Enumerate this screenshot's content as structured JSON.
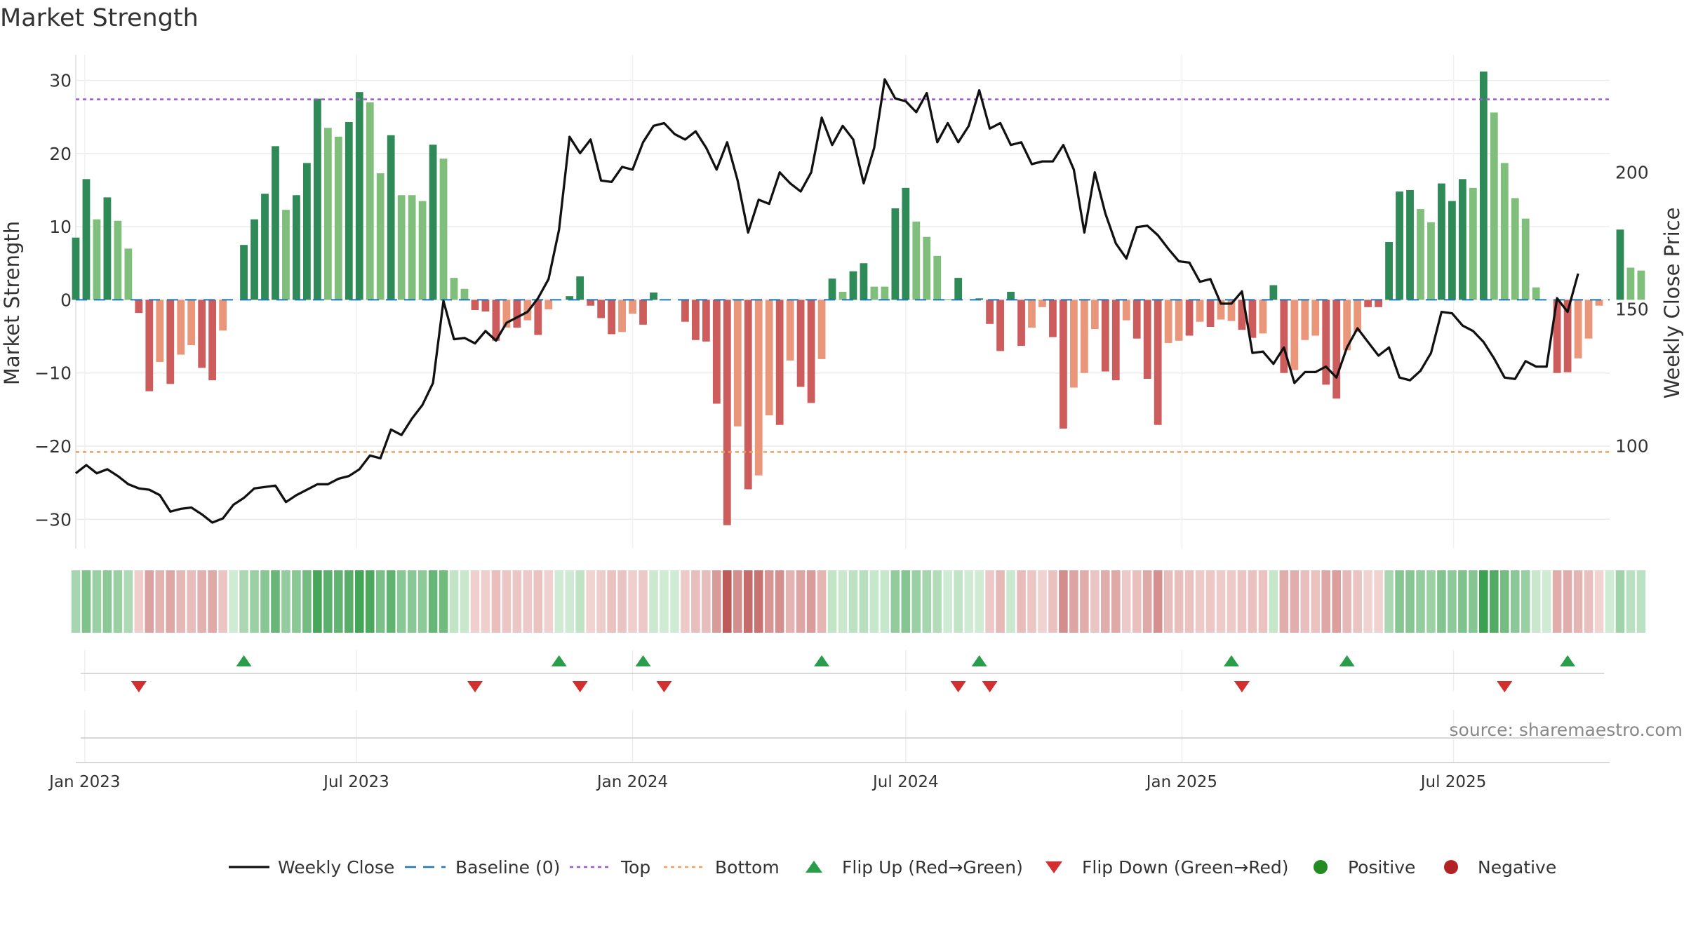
{
  "chart_data": {
    "type": "bar",
    "title": "Market Strength",
    "ylabel_left": "Market Strength",
    "ylabel_right": "Weekly Close Price",
    "ylim_left": [
      -34,
      33.5
    ],
    "ylim_right": [
      62.5,
      243
    ],
    "yticks_left": [
      30,
      20,
      10,
      0,
      -10,
      -20,
      -30
    ],
    "ytick_labels_left": [
      "30",
      "20",
      "10",
      "0",
      "−10",
      "−20",
      "−30"
    ],
    "yticks_right": [
      200,
      150,
      100
    ],
    "ytick_labels_right": [
      "200",
      "150",
      "100"
    ],
    "x_start": "2022-12-26",
    "x_end": "2025-10-13",
    "xticks": [
      "2023-01-01",
      "2023-07-01",
      "2024-01-01",
      "2024-07-01",
      "2025-01-01",
      "2025-07-01"
    ],
    "xtick_labels": [
      "Jan 2023",
      "Jul 2023",
      "Jan 2024",
      "Jul 2024",
      "Jan 2025",
      "Jul 2025"
    ],
    "top_level": 27.4,
    "bottom_level": -20.8,
    "baseline": 0,
    "grid": true,
    "legend_placement": "bottom-center",
    "legend": [
      "Weekly Close",
      "Baseline (0)",
      "Top",
      "Bottom",
      "Flip Up (Red→Green)",
      "Flip Down (Green→Red)",
      "Positive",
      "Negative"
    ],
    "source": "source: sharemaestro.com",
    "strength": [
      8.5,
      16.5,
      11,
      14,
      10.8,
      7,
      -1.8,
      -12.5,
      -8.5,
      -11.5,
      -7.5,
      -6.2,
      -9.3,
      -11,
      -4.2,
      0,
      7.5,
      11,
      14.5,
      21,
      12.3,
      14.3,
      18.7,
      27.5,
      23.5,
      22.3,
      24.3,
      28.4,
      27,
      17.3,
      22.5,
      14.3,
      14.3,
      13.5,
      21.2,
      19.3,
      3,
      1.5,
      -1.4,
      -1.6,
      -5.6,
      -3.8,
      -3.8,
      -2.8,
      -4.8,
      -1.3,
      0,
      0.5,
      3.2,
      -0.8,
      -2.5,
      -4.7,
      -4.4,
      -1.9,
      -3.4,
      1,
      0,
      0,
      -3,
      -5.5,
      -5.7,
      -14.2,
      -30.8,
      -17.3,
      -25.9,
      -24,
      -15.8,
      -17.1,
      -8.3,
      -11.9,
      -14.1,
      -8.1,
      2.9,
      1.1,
      3.9,
      5,
      1.8,
      1.8,
      12.5,
      15.3,
      10.7,
      8.6,
      6,
      0.1,
      3,
      0,
      0.2,
      -3.3,
      -7,
      1.1,
      -6.3,
      -3.8,
      -1,
      -5.1,
      -17.6,
      -12,
      -10,
      -4,
      -9.8,
      -11,
      -2.8,
      -5.3,
      -10.8,
      -17.1,
      -5.9,
      -5.6,
      -4.9,
      -3,
      -3.7,
      -2.7,
      -2.9,
      -4.1,
      -5.2,
      -4.6,
      2,
      -10,
      -9.6,
      -5.5,
      -4.9,
      -11.6,
      -13.5,
      -6.9,
      -4.4,
      -1,
      -1,
      7.9,
      14.8,
      15,
      12.4,
      10.6,
      15.9,
      13.5,
      16.5,
      15.3,
      31.2,
      25.6,
      18.7,
      13.9,
      11.1,
      1.7,
      0,
      -10,
      -9.9,
      -8,
      -5.3,
      -0.8,
      0,
      9.6,
      4.4,
      4
    ],
    "bar_colors": [
      "#2e8b57",
      "#2e8b57",
      "#7fbf7b",
      "#2e8b57",
      "#7fbf7b",
      "#7fbf7b",
      "#cd5c5c",
      "#cd5c5c",
      "#e9967a",
      "#cd5c5c",
      "#e9967a",
      "#e9967a",
      "#cd5c5c",
      "#cd5c5c",
      "#e9967a",
      "#7fbf7b",
      "#2e8b57",
      "#2e8b57",
      "#2e8b57",
      "#2e8b57",
      "#7fbf7b",
      "#2e8b57",
      "#2e8b57",
      "#2e8b57",
      "#7fbf7b",
      "#7fbf7b",
      "#2e8b57",
      "#2e8b57",
      "#7fbf7b",
      "#7fbf7b",
      "#2e8b57",
      "#7fbf7b",
      "#7fbf7b",
      "#7fbf7b",
      "#2e8b57",
      "#7fbf7b",
      "#7fbf7b",
      "#7fbf7b",
      "#cd5c5c",
      "#cd5c5c",
      "#cd5c5c",
      "#e9967a",
      "#cd5c5c",
      "#e9967a",
      "#cd5c5c",
      "#e9967a",
      "#7fbf7b",
      "#2e8b57",
      "#2e8b57",
      "#cd5c5c",
      "#cd5c5c",
      "#cd5c5c",
      "#e9967a",
      "#e9967a",
      "#cd5c5c",
      "#2e8b57",
      "#7fbf7b",
      "#7fbf7b",
      "#cd5c5c",
      "#cd5c5c",
      "#cd5c5c",
      "#cd5c5c",
      "#cd5c5c",
      "#e9967a",
      "#cd5c5c",
      "#e9967a",
      "#e9967a",
      "#cd5c5c",
      "#e9967a",
      "#cd5c5c",
      "#cd5c5c",
      "#e9967a",
      "#2e8b57",
      "#7fbf7b",
      "#2e8b57",
      "#2e8b57",
      "#7fbf7b",
      "#7fbf7b",
      "#2e8b57",
      "#2e8b57",
      "#7fbf7b",
      "#7fbf7b",
      "#7fbf7b",
      "#7fbf7b",
      "#2e8b57",
      "#7fbf7b",
      "#2e8b57",
      "#cd5c5c",
      "#cd5c5c",
      "#2e8b57",
      "#cd5c5c",
      "#e9967a",
      "#e9967a",
      "#cd5c5c",
      "#cd5c5c",
      "#e9967a",
      "#e9967a",
      "#e9967a",
      "#cd5c5c",
      "#cd5c5c",
      "#e9967a",
      "#cd5c5c",
      "#cd5c5c",
      "#cd5c5c",
      "#e9967a",
      "#e9967a",
      "#cd5c5c",
      "#e9967a",
      "#cd5c5c",
      "#e9967a",
      "#e9967a",
      "#cd5c5c",
      "#cd5c5c",
      "#e9967a",
      "#2e8b57",
      "#cd5c5c",
      "#e9967a",
      "#e9967a",
      "#e9967a",
      "#cd5c5c",
      "#cd5c5c",
      "#e9967a",
      "#e9967a",
      "#cd5c5c",
      "#cd5c5c",
      "#2e8b57",
      "#2e8b57",
      "#2e8b57",
      "#7fbf7b",
      "#7fbf7b",
      "#2e8b57",
      "#2e8b57",
      "#2e8b57",
      "#7fbf7b",
      "#2e8b57",
      "#7fbf7b",
      "#7fbf7b",
      "#7fbf7b",
      "#7fbf7b",
      "#7fbf7b",
      "#7fbf7b",
      "#cd5c5c",
      "#cd5c5c",
      "#e9967a",
      "#e9967a",
      "#e9967a",
      "#7fbf7b",
      "#2e8b57",
      "#7fbf7b",
      "#7fbf7b"
    ],
    "price": [
      90,
      93,
      90,
      91.5,
      89,
      86,
      84.5,
      84,
      82,
      76,
      77,
      77.5,
      75,
      72,
      73.5,
      78.5,
      81,
      84.5,
      85,
      85.5,
      79.5,
      82,
      84,
      86,
      86,
      88,
      89,
      91.5,
      96.5,
      95.5,
      106,
      104,
      110,
      115,
      123,
      153,
      139,
      139.5,
      137.5,
      142,
      138.5,
      145,
      147,
      149,
      154,
      161,
      179,
      213,
      207,
      212,
      197,
      196.5,
      202,
      201,
      211,
      217,
      218,
      214,
      212,
      215,
      209,
      201,
      211,
      197,
      178,
      190,
      188.5,
      200,
      196,
      193,
      200,
      220,
      210,
      217,
      212,
      196,
      209,
      234,
      227,
      226,
      222,
      229,
      211,
      218,
      211,
      217,
      230,
      216,
      218,
      210,
      211,
      203,
      204,
      204,
      210,
      201,
      178,
      200,
      185,
      174,
      168.5,
      180,
      180.5,
      177,
      172,
      167.5,
      167,
      160,
      161,
      152,
      152,
      156.5,
      134,
      134.5,
      130,
      136,
      123,
      127,
      127,
      129,
      125,
      136,
      143,
      138,
      133,
      136,
      125,
      124,
      127.5,
      134,
      149,
      148.5,
      144,
      142,
      138,
      132,
      125,
      124.5,
      131,
      129,
      129,
      154,
      149,
      163
    ],
    "flip_up_weeks": [
      16,
      46,
      54,
      71,
      86,
      110,
      121,
      142
    ],
    "flip_down_weeks": [
      6,
      38,
      48,
      56,
      84,
      87,
      111,
      136
    ]
  }
}
